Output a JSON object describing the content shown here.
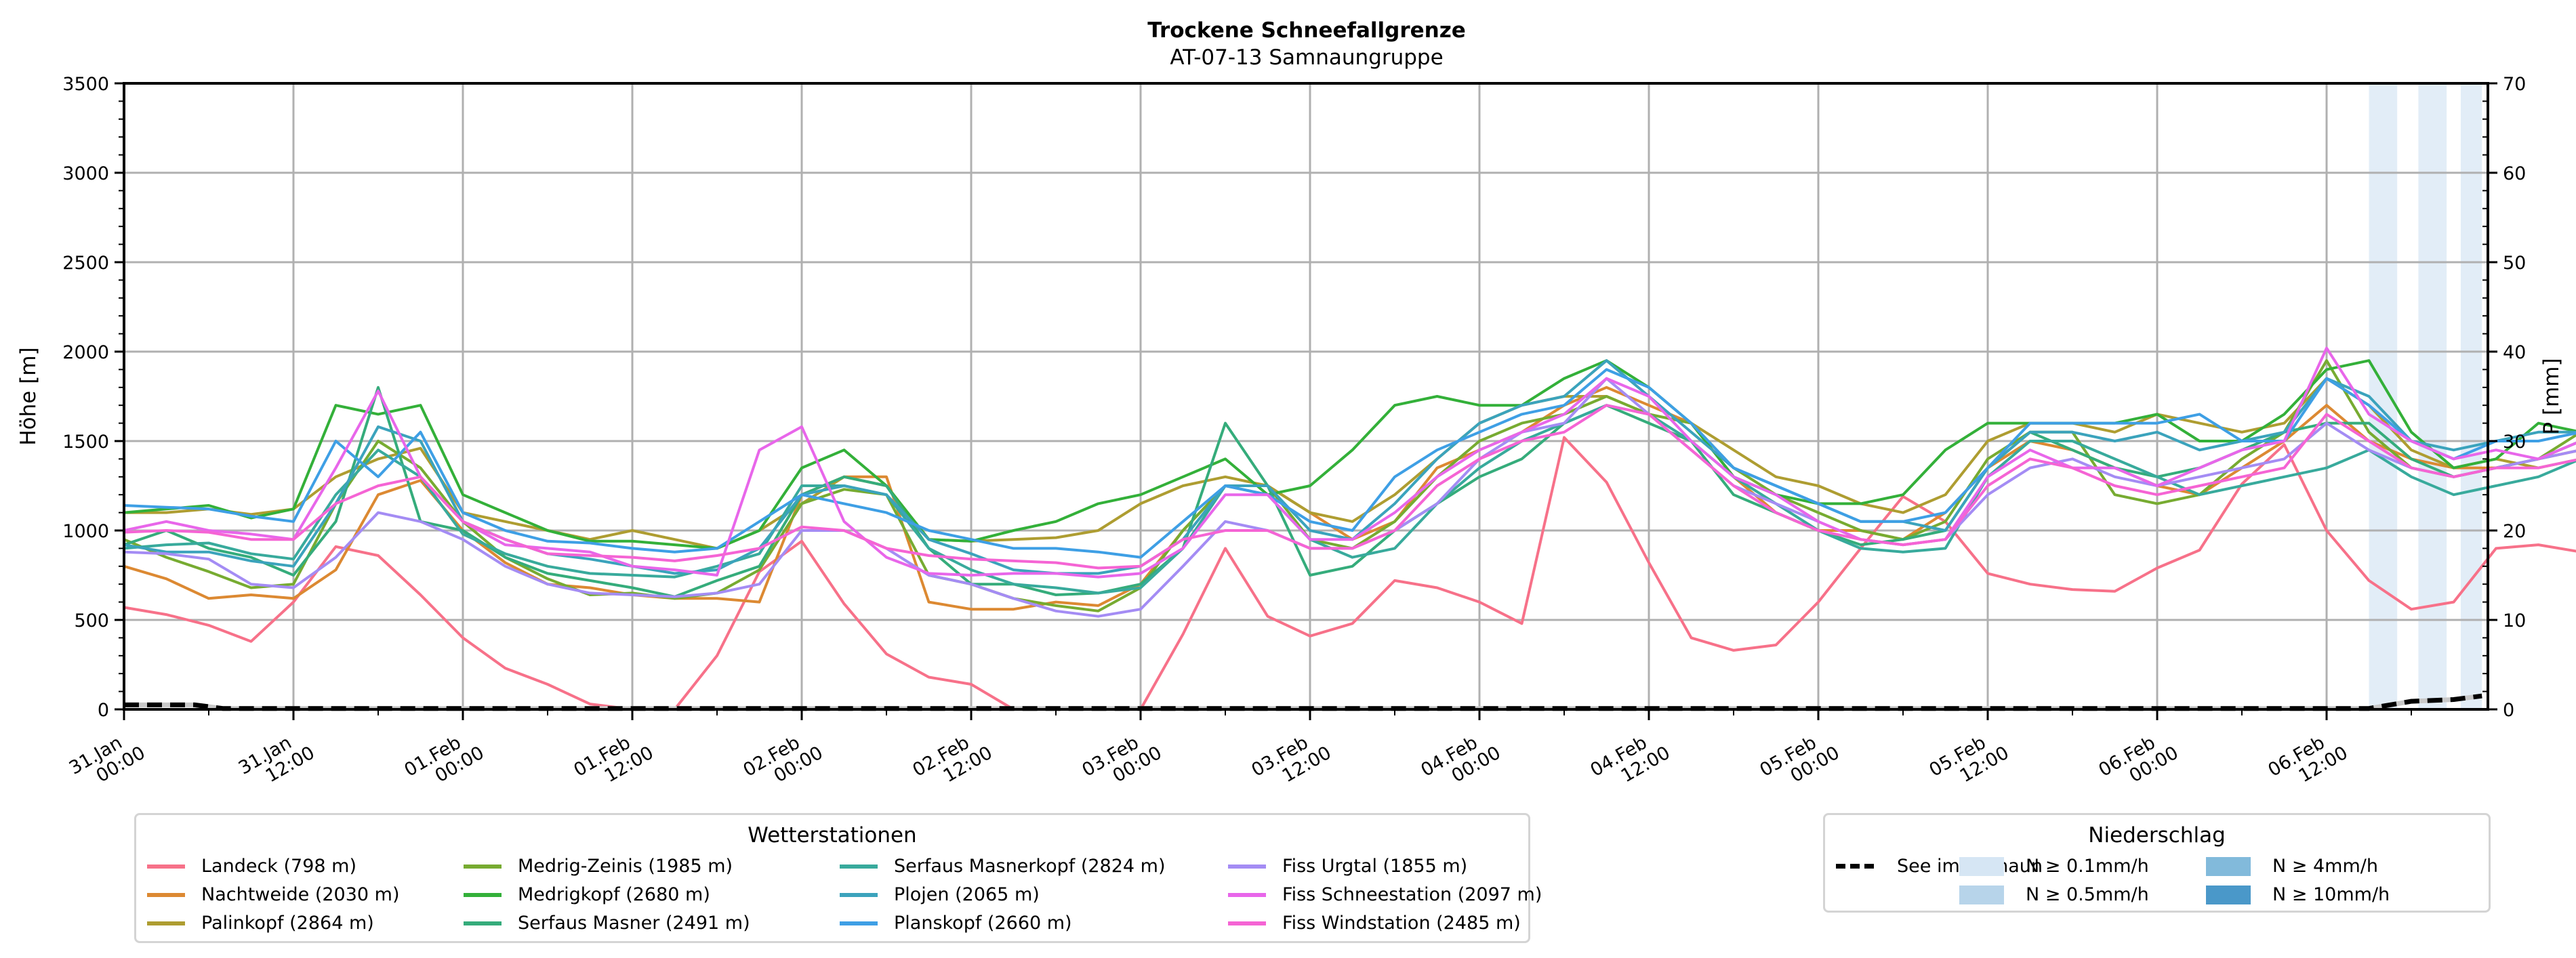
{
  "chart_data": {
    "type": "line",
    "title": "Trockene Schneefallgrenze",
    "subtitle": "AT-07-13 Samnaungruppe",
    "ylabel": "Höhe [m]",
    "ylabel_right": "P [mm]",
    "ylim": [
      0,
      3500
    ],
    "ylim_right": [
      0,
      70
    ],
    "yticks": [
      "0",
      "500",
      "1000",
      "1500",
      "2000",
      "2500",
      "3000",
      "3500"
    ],
    "yticks_right": [
      "0",
      "10",
      "20",
      "30",
      "40",
      "50",
      "60",
      "70"
    ],
    "grid": true,
    "x_unit": "hours since 31.Jan 00:00",
    "x_range_hours": [
      0,
      167
    ],
    "xticks": [
      {
        "line1": "31.Jan",
        "line2": "00:00"
      },
      {
        "line1": "31.Jan",
        "line2": "12:00"
      },
      {
        "line1": "01.Feb",
        "line2": "00:00"
      },
      {
        "line1": "01.Feb",
        "line2": "12:00"
      },
      {
        "line1": "02.Feb",
        "line2": "00:00"
      },
      {
        "line1": "02.Feb",
        "line2": "12:00"
      },
      {
        "line1": "03.Feb",
        "line2": "00:00"
      },
      {
        "line1": "03.Feb",
        "line2": "12:00"
      },
      {
        "line1": "04.Feb",
        "line2": "00:00"
      },
      {
        "line1": "04.Feb",
        "line2": "12:00"
      },
      {
        "line1": "05.Feb",
        "line2": "00:00"
      },
      {
        "line1": "05.Feb",
        "line2": "12:00"
      },
      {
        "line1": "06.Feb",
        "line2": "00:00"
      },
      {
        "line1": "06.Feb",
        "line2": "12:00"
      }
    ],
    "x_step_hours": 3,
    "series": [
      {
        "name": "Landeck (798 m)",
        "color": "#f77189",
        "values": [
          570,
          530,
          470,
          380,
          600,
          910,
          860,
          640,
          400,
          230,
          140,
          30,
          0,
          0,
          300,
          770,
          940,
          590,
          310,
          180,
          140,
          0,
          0,
          0,
          0,
          420,
          900,
          520,
          410,
          480,
          720,
          680,
          600,
          480,
          1520,
          1270,
          820,
          400,
          330,
          360,
          600,
          900,
          1190,
          1050,
          760,
          700,
          670,
          660,
          790,
          890,
          1260,
          1480,
          1000,
          720,
          560,
          600,
          900,
          920,
          880,
          900,
          1300,
          1440,
          1500,
          1400,
          1300,
          1240
        ]
      },
      {
        "name": "Nachtweide (2030 m)",
        "color": "#dc8932",
        "values": [
          800,
          730,
          620,
          640,
          620,
          780,
          1200,
          1280,
          1000,
          820,
          700,
          680,
          640,
          620,
          620,
          600,
          1200,
          1300,
          1300,
          600,
          560,
          560,
          600,
          580,
          700,
          1000,
          1250,
          1250,
          1100,
          950,
          1050,
          1350,
          1450,
          1550,
          1700,
          1800,
          1700,
          1600,
          1300,
          1100,
          1000,
          1000,
          950,
          1100,
          1350,
          1500,
          1450,
          1350,
          1250,
          1200,
          1350,
          1500,
          1700,
          1500,
          1400,
          1350,
          1350,
          1400,
          1450,
          1500,
          1650,
          1700,
          1800,
          1600,
          1500,
          1450
        ]
      },
      {
        "name": "Palinkopf (2864 m)",
        "color": "#ae9d31",
        "values": [
          1100,
          1100,
          1120,
          1090,
          1120,
          1300,
          1400,
          1460,
          1100,
          1050,
          1000,
          950,
          1000,
          950,
          900,
          1000,
          1150,
          1300,
          1250,
          950,
          940,
          950,
          960,
          1000,
          1150,
          1250,
          1300,
          1250,
          1100,
          1050,
          1200,
          1400,
          1600,
          1700,
          1750,
          1750,
          1650,
          1600,
          1450,
          1300,
          1250,
          1150,
          1100,
          1200,
          1500,
          1600,
          1600,
          1550,
          1650,
          1600,
          1550,
          1600,
          1850,
          1700,
          1450,
          1350,
          1400,
          1350,
          1400,
          1550,
          1600,
          1700,
          1750,
          1650,
          1600,
          1450
        ]
      },
      {
        "name": "Medrig-Zeinis (1985 m)",
        "color": "#77ab31",
        "values": [
          950,
          850,
          770,
          680,
          700,
          1150,
          1500,
          1350,
          1050,
          850,
          730,
          640,
          650,
          620,
          650,
          780,
          1150,
          1230,
          1200,
          750,
          700,
          620,
          580,
          550,
          680,
          1000,
          1250,
          1250,
          950,
          900,
          1050,
          1300,
          1500,
          1600,
          1650,
          1750,
          1650,
          1600,
          1350,
          1200,
          1100,
          1000,
          950,
          1050,
          1400,
          1550,
          1550,
          1200,
          1150,
          1200,
          1400,
          1550,
          1950,
          1550,
          1350,
          1300,
          1350,
          1400,
          1550,
          1600,
          1750,
          1700,
          1750,
          1700,
          1550,
          1450
        ]
      },
      {
        "name": "Medrigkopf (2680 m)",
        "color": "#33b039",
        "values": [
          1100,
          1120,
          1140,
          1070,
          1120,
          1700,
          1650,
          1700,
          1200,
          1100,
          1000,
          940,
          940,
          920,
          900,
          1000,
          1350,
          1450,
          1250,
          950,
          940,
          1000,
          1050,
          1150,
          1200,
          1300,
          1400,
          1200,
          1250,
          1450,
          1700,
          1750,
          1700,
          1700,
          1850,
          1950,
          1800,
          1600,
          1300,
          1200,
          1150,
          1150,
          1200,
          1450,
          1600,
          1600,
          1600,
          1600,
          1650,
          1500,
          1500,
          1650,
          1900,
          1950,
          1550,
          1350,
          1400,
          1600,
          1550,
          1600,
          1700,
          1750,
          1800,
          1750,
          1650,
          1600
        ]
      },
      {
        "name": "Serfaus Masner (2491 m)",
        "color": "#35ac7b",
        "values": [
          920,
          1000,
          900,
          850,
          750,
          1050,
          1800,
          1050,
          1000,
          850,
          760,
          720,
          680,
          630,
          720,
          800,
          1200,
          1300,
          1250,
          900,
          700,
          700,
          640,
          650,
          700,
          900,
          1600,
          1250,
          750,
          800,
          1000,
          1150,
          1300,
          1400,
          1600,
          1700,
          1600,
          1500,
          1200,
          1100,
          1000,
          920,
          950,
          1000,
          1350,
          1550,
          1450,
          1350,
          1300,
          1350,
          1450,
          1550,
          1600,
          1600,
          1400,
          1300,
          1350,
          1400,
          1500,
          1550,
          1700,
          1750,
          1700,
          1650,
          1550,
          1450
        ]
      },
      {
        "name": "Serfaus Masnerkopf (2824 m)",
        "color": "#38aa9c",
        "values": [
          900,
          920,
          930,
          870,
          840,
          1200,
          1450,
          1300,
          980,
          870,
          800,
          760,
          750,
          740,
          800,
          870,
          1250,
          1250,
          1200,
          900,
          780,
          700,
          680,
          650,
          680,
          900,
          1250,
          1200,
          950,
          850,
          900,
          1150,
          1350,
          1500,
          1600,
          1700,
          1650,
          1500,
          1300,
          1150,
          1000,
          900,
          880,
          900,
          1300,
          1500,
          1500,
          1400,
          1300,
          1200,
          1250,
          1300,
          1350,
          1450,
          1300,
          1200,
          1250,
          1300,
          1400,
          1400,
          1500,
          1500,
          1450,
          1400,
          1300,
          1250
        ]
      },
      {
        "name": "Plojen (2065 m)",
        "color": "#3ba3bc",
        "values": [
          920,
          880,
          880,
          830,
          800,
          1150,
          1580,
          1500,
          1050,
          950,
          870,
          840,
          800,
          760,
          780,
          900,
          1200,
          1250,
          1200,
          950,
          870,
          780,
          760,
          760,
          800,
          950,
          1250,
          1250,
          1000,
          950,
          1150,
          1400,
          1600,
          1700,
          1750,
          1950,
          1750,
          1550,
          1350,
          1250,
          1150,
          1050,
          1050,
          1000,
          1350,
          1550,
          1550,
          1500,
          1550,
          1450,
          1500,
          1550,
          1850,
          1750,
          1500,
          1450,
          1500,
          1550,
          1550,
          1600,
          1850,
          1800,
          1750,
          1650,
          1550,
          1550
        ]
      },
      {
        "name": "Planskopf (2660 m)",
        "color": "#3e9fe5",
        "values": [
          1140,
          1130,
          1120,
          1080,
          1050,
          1500,
          1300,
          1550,
          1100,
          1000,
          940,
          930,
          900,
          880,
          900,
          1050,
          1200,
          1150,
          1100,
          1000,
          950,
          900,
          900,
          880,
          850,
          1050,
          1250,
          1200,
          1050,
          1000,
          1300,
          1450,
          1550,
          1650,
          1700,
          1900,
          1800,
          1600,
          1350,
          1250,
          1150,
          1050,
          1050,
          1100,
          1350,
          1600,
          1600,
          1600,
          1600,
          1650,
          1500,
          1500,
          1850,
          1700,
          1500,
          1400,
          1500,
          1500,
          1550,
          1550,
          1750,
          1800,
          1750,
          1650,
          1550,
          1500
        ]
      },
      {
        "name": "Fiss Urgtal  (1855 m)",
        "color": "#a48cf4",
        "values": [
          880,
          870,
          840,
          700,
          680,
          850,
          1100,
          1050,
          950,
          800,
          700,
          650,
          640,
          630,
          650,
          700,
          1000,
          1000,
          900,
          750,
          700,
          620,
          550,
          520,
          560,
          800,
          1050,
          1000,
          900,
          900,
          1000,
          1150,
          1400,
          1550,
          1600,
          1850,
          1650,
          1450,
          1250,
          1150,
          1050,
          950,
          920,
          950,
          1200,
          1350,
          1400,
          1300,
          1250,
          1300,
          1350,
          1400,
          1600,
          1450,
          1350,
          1300,
          1350,
          1400,
          1450,
          1500,
          1650,
          1750,
          1650,
          1600,
          1550,
          1500
        ]
      },
      {
        "name": "Fiss Schneestation (2097 m)",
        "color": "#e866ea",
        "values": [
          1000,
          1050,
          1000,
          980,
          950,
          1350,
          1780,
          1300,
          1050,
          920,
          900,
          880,
          800,
          780,
          750,
          1450,
          1580,
          1050,
          850,
          760,
          750,
          760,
          760,
          740,
          760,
          900,
          1200,
          1200,
          950,
          950,
          1100,
          1300,
          1450,
          1550,
          1650,
          1850,
          1750,
          1500,
          1300,
          1200,
          1050,
          950,
          920,
          950,
          1300,
          1450,
          1350,
          1350,
          1250,
          1350,
          1450,
          1500,
          2020,
          1650,
          1500,
          1400,
          1450,
          1400,
          1500,
          1550,
          1700,
          1800,
          1700,
          1650,
          1550,
          1500
        ]
      },
      {
        "name": "Fiss Windstation (2485 m)",
        "color": "#f564d4",
        "values": [
          990,
          1000,
          990,
          950,
          950,
          1150,
          1250,
          1300,
          1050,
          950,
          870,
          860,
          850,
          830,
          860,
          900,
          1020,
          1000,
          900,
          860,
          840,
          830,
          820,
          790,
          800,
          950,
          1000,
          1000,
          900,
          900,
          1000,
          1250,
          1400,
          1500,
          1550,
          1700,
          1650,
          1450,
          1250,
          1100,
          1000,
          950,
          920,
          950,
          1250,
          1400,
          1350,
          1250,
          1200,
          1250,
          1300,
          1350,
          1650,
          1500,
          1350,
          1300,
          1350,
          1350,
          1400,
          1450,
          1600,
          1700,
          1600,
          1500,
          1450,
          1300
        ]
      }
    ],
    "precip_series": {
      "name": "See im Paznaun",
      "unit": "mm",
      "style": "dashed",
      "color": "#000000",
      "points": [
        [
          0,
          0.5
        ],
        [
          5,
          0.5
        ],
        [
          7,
          0.1
        ],
        [
          150,
          0.1
        ],
        [
          156,
          0.1
        ],
        [
          159,
          0.1
        ],
        [
          162,
          0.9
        ],
        [
          165,
          1.1
        ],
        [
          167,
          1.5
        ]
      ]
    },
    "precip_bands": [
      {
        "start_h": 159,
        "end_h": 161,
        "level": "N ≥ 0.1mm/h"
      },
      {
        "start_h": 162.5,
        "end_h": 164.5,
        "level": "N ≥ 0.1mm/h"
      },
      {
        "start_h": 165.5,
        "end_h": 167,
        "level": "N ≥ 0.1mm/h"
      }
    ],
    "legend_stations": {
      "title": "Wetterstationen",
      "placement": "bottom-left"
    },
    "legend_precip": {
      "title": "Niederschlag",
      "placement": "bottom-right",
      "line_label": "See im Paznaun",
      "levels": [
        {
          "label": "N ≥ 0.1mm/h",
          "color": "#d6e6f4"
        },
        {
          "label": "N ≥ 0.5mm/h",
          "color": "#b7d4ea"
        },
        {
          "label": "N ≥ 4mm/h",
          "color": "#82badb"
        },
        {
          "label": "N ≥ 10mm/h",
          "color": "#4a98c9"
        }
      ]
    }
  }
}
